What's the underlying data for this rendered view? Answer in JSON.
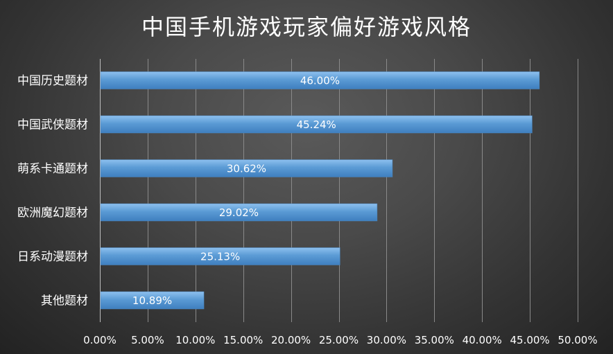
{
  "chart_data": {
    "type": "bar",
    "orientation": "horizontal",
    "title": "中国手机游戏玩家偏好游戏风格",
    "categories": [
      "中国历史题材",
      "中国武侠题材",
      "萌系卡通题材",
      "欧洲魔幻题材",
      "日系动漫题材",
      "其他题材"
    ],
    "values": [
      46.0,
      45.24,
      30.62,
      29.02,
      25.13,
      10.89
    ],
    "data_labels": [
      "46.00%",
      "45.24%",
      "30.62%",
      "29.02%",
      "25.13%",
      "10.89%"
    ],
    "xlim": [
      0,
      50
    ],
    "x_ticks": [
      0,
      5,
      10,
      15,
      20,
      25,
      30,
      35,
      40,
      45,
      50
    ],
    "x_tick_labels": [
      "0.00%",
      "5.00%",
      "10.00%",
      "15.00%",
      "20.00%",
      "25.00%",
      "30.00%",
      "35.00%",
      "40.00%",
      "45.00%",
      "50.00%"
    ],
    "grid": "vertical",
    "legend": "none",
    "bar_color": "#5b9bd5",
    "background": "dark-radial-gray"
  }
}
